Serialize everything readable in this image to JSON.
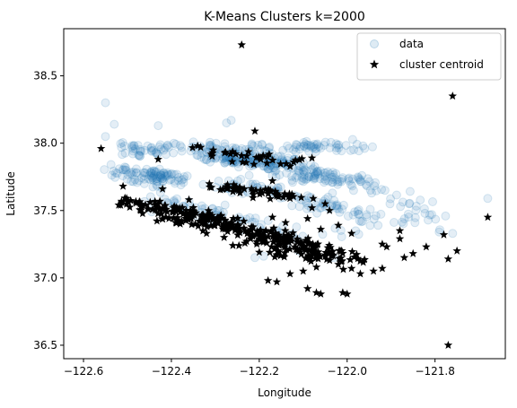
{
  "chart_data": {
    "type": "scatter",
    "title": "K-Means Clusters k=2000",
    "xlabel": "Longitude",
    "ylabel": "Latitude",
    "xlim": [
      -122.645,
      -121.64
    ],
    "ylim": [
      36.4,
      38.85
    ],
    "xticks": [
      -122.6,
      -122.4,
      -122.2,
      -122.0,
      -121.8
    ],
    "xtick_labels": [
      "−122.6",
      "−122.4",
      "−122.2",
      "−122.0",
      "−121.8"
    ],
    "yticks": [
      36.5,
      37.0,
      37.5,
      38.0,
      38.5
    ],
    "ytick_labels": [
      "36.5",
      "37.0",
      "37.5",
      "38.0",
      "38.5"
    ],
    "grid": false,
    "legend_position": "top-right",
    "colors": {
      "data": "#1f77b4",
      "centroid": "#000000"
    },
    "series": [
      {
        "name": "data",
        "marker": "circle",
        "alpha": 0.12,
        "segments": [
          {
            "from": [
              -122.51,
              37.98
            ],
            "to": [
              -122.05,
              37.96
            ],
            "n": 70,
            "spread": 0.018
          },
          {
            "from": [
              -122.5,
              37.93
            ],
            "to": [
              -122.43,
              37.93
            ],
            "n": 25,
            "spread": 0.02
          },
          {
            "from": [
              -122.52,
              37.8
            ],
            "to": [
              -122.38,
              37.75
            ],
            "n": 70,
            "spread": 0.02
          },
          {
            "from": [
              -122.5,
              37.73
            ],
            "to": [
              -122.38,
              37.71
            ],
            "n": 30,
            "spread": 0.02
          },
          {
            "from": [
              -122.32,
              37.95
            ],
            "to": [
              -122.04,
              37.74
            ],
            "n": 150,
            "spread": 0.028
          },
          {
            "from": [
              -122.31,
              37.89
            ],
            "to": [
              -122.13,
              37.85
            ],
            "n": 60,
            "spread": 0.025
          },
          {
            "from": [
              -122.1,
              37.75
            ],
            "to": [
              -121.94,
              37.7
            ],
            "n": 40,
            "spread": 0.02
          },
          {
            "from": [
              -122.11,
              37.98
            ],
            "to": [
              -121.97,
              37.98
            ],
            "n": 35,
            "spread": 0.025
          },
          {
            "from": [
              -122.29,
              37.7
            ],
            "to": [
              -122.15,
              37.64
            ],
            "n": 40,
            "spread": 0.02
          },
          {
            "from": [
              -122.44,
              37.6
            ],
            "to": [
              -122.26,
              37.43
            ],
            "n": 40,
            "spread": 0.025
          },
          {
            "from": [
              -122.13,
              37.6
            ],
            "to": [
              -121.97,
              37.46
            ],
            "n": 50,
            "spread": 0.03
          },
          {
            "from": [
              -121.95,
              37.7
            ],
            "to": [
              -121.78,
              37.4
            ],
            "n": 30,
            "spread": 0.04
          },
          {
            "from": [
              -122.25,
              37.45
            ],
            "to": [
              -122.1,
              37.3
            ],
            "n": 25,
            "spread": 0.03
          },
          {
            "from": [
              -122.0,
              37.35
            ],
            "to": [
              -121.83,
              37.45
            ],
            "n": 20,
            "spread": 0.04
          },
          {
            "from": [
              -122.55,
              38.3
            ],
            "to": [
              -122.55,
              38.3
            ],
            "n": 1,
            "spread": 0
          },
          {
            "from": [
              -122.55,
              38.05
            ],
            "to": [
              -122.55,
              38.05
            ],
            "n": 1,
            "spread": 0
          },
          {
            "from": [
              -122.53,
              38.14
            ],
            "to": [
              -122.53,
              38.14
            ],
            "n": 1,
            "spread": 0
          },
          {
            "from": [
              -122.43,
              38.13
            ],
            "to": [
              -122.43,
              38.13
            ],
            "n": 1,
            "spread": 0
          },
          {
            "from": [
              -122.29,
              38.16
            ],
            "to": [
              -122.28,
              38.16
            ],
            "n": 2,
            "spread": 0.01
          },
          {
            "from": [
              -121.68,
              37.59
            ],
            "to": [
              -121.68,
              37.59
            ],
            "n": 1,
            "spread": 0
          },
          {
            "from": [
              -121.76,
              37.33
            ],
            "to": [
              -121.76,
              37.33
            ],
            "n": 1,
            "spread": 0
          },
          {
            "from": [
              -122.19,
              37.16
            ],
            "to": [
              -122.19,
              37.16
            ],
            "n": 1,
            "spread": 0
          },
          {
            "from": [
              -122.11,
              37.2
            ],
            "to": [
              -122.11,
              37.2
            ],
            "n": 1,
            "spread": 0
          },
          {
            "from": [
              -122.03,
              37.15
            ],
            "to": [
              -122.03,
              37.15
            ],
            "n": 1,
            "spread": 0
          },
          {
            "from": [
              -122.31,
              37.41
            ],
            "to": [
              -122.31,
              37.41
            ],
            "n": 1,
            "spread": 0
          },
          {
            "from": [
              -122.21,
              37.15
            ],
            "to": [
              -122.21,
              37.15
            ],
            "n": 1,
            "spread": 0
          }
        ]
      },
      {
        "name": "cluster centroid",
        "marker": "star",
        "points": [
          [
            -122.24,
            38.73
          ],
          [
            -121.76,
            38.35
          ],
          [
            -122.21,
            38.09
          ],
          [
            -122.56,
            37.96
          ],
          [
            -122.43,
            37.88
          ],
          [
            -122.08,
            37.89
          ],
          [
            -122.51,
            37.68
          ],
          [
            -122.42,
            37.66
          ],
          [
            -122.36,
            37.58
          ],
          [
            -122.26,
            37.64
          ],
          [
            -122.17,
            37.72
          ],
          [
            -122.13,
            37.59
          ],
          [
            -122.05,
            37.55
          ],
          [
            -122.08,
            37.52
          ],
          [
            -122.04,
            37.5
          ],
          [
            -122.09,
            37.44
          ],
          [
            -122.17,
            37.45
          ],
          [
            -122.14,
            37.41
          ],
          [
            -122.06,
            37.36
          ],
          [
            -122.02,
            37.39
          ],
          [
            -121.99,
            37.33
          ],
          [
            -121.92,
            37.25
          ],
          [
            -121.91,
            37.23
          ],
          [
            -121.88,
            37.35
          ],
          [
            -121.88,
            37.29
          ],
          [
            -121.82,
            37.23
          ],
          [
            -121.78,
            37.32
          ],
          [
            -121.75,
            37.2
          ],
          [
            -121.68,
            37.45
          ],
          [
            -121.77,
            37.14
          ],
          [
            -121.85,
            37.18
          ],
          [
            -121.87,
            37.15
          ],
          [
            -121.92,
            37.07
          ],
          [
            -121.94,
            37.05
          ],
          [
            -121.97,
            37.03
          ],
          [
            -121.99,
            37.07
          ],
          [
            -122.02,
            37.1
          ],
          [
            -122.04,
            37.13
          ],
          [
            -122.07,
            37.08
          ],
          [
            -122.1,
            37.05
          ],
          [
            -122.13,
            37.03
          ],
          [
            -122.18,
            36.98
          ],
          [
            -122.16,
            36.97
          ],
          [
            -122.09,
            36.92
          ],
          [
            -122.07,
            36.89
          ],
          [
            -122.06,
            36.88
          ],
          [
            -122.01,
            36.89
          ],
          [
            -122.0,
            36.88
          ],
          [
            -121.77,
            36.5
          ],
          [
            -122.28,
            37.3
          ],
          [
            -122.22,
            37.29
          ],
          [
            -122.16,
            37.23
          ],
          [
            -122.2,
            37.19
          ],
          [
            -122.26,
            37.24
          ],
          [
            -122.32,
            37.33
          ],
          [
            -122.38,
            37.4
          ],
          [
            -122.47,
            37.5
          ],
          [
            -122.5,
            37.57
          ]
        ],
        "dense_segments": [
          {
            "from": [
              -122.5,
              37.58
            ],
            "to": [
              -122.28,
              37.42
            ],
            "n": 90,
            "spread": 0.018
          },
          {
            "from": [
              -122.42,
              37.47
            ],
            "to": [
              -122.12,
              37.28
            ],
            "n": 120,
            "spread": 0.025
          },
          {
            "from": [
              -122.2,
              37.3
            ],
            "to": [
              -122.05,
              37.14
            ],
            "n": 80,
            "spread": 0.03
          },
          {
            "from": [
              -122.1,
              37.28
            ],
            "to": [
              -121.99,
              37.12
            ],
            "n": 40,
            "spread": 0.025
          },
          {
            "from": [
              -122.3,
              37.68
            ],
            "to": [
              -122.1,
              37.6
            ],
            "n": 50,
            "spread": 0.015
          },
          {
            "from": [
              -122.33,
              37.95
            ],
            "to": [
              -122.12,
              37.85
            ],
            "n": 35,
            "spread": 0.02
          }
        ]
      }
    ]
  },
  "legend": {
    "items": [
      {
        "label": "data"
      },
      {
        "label": "cluster centroid"
      }
    ]
  }
}
